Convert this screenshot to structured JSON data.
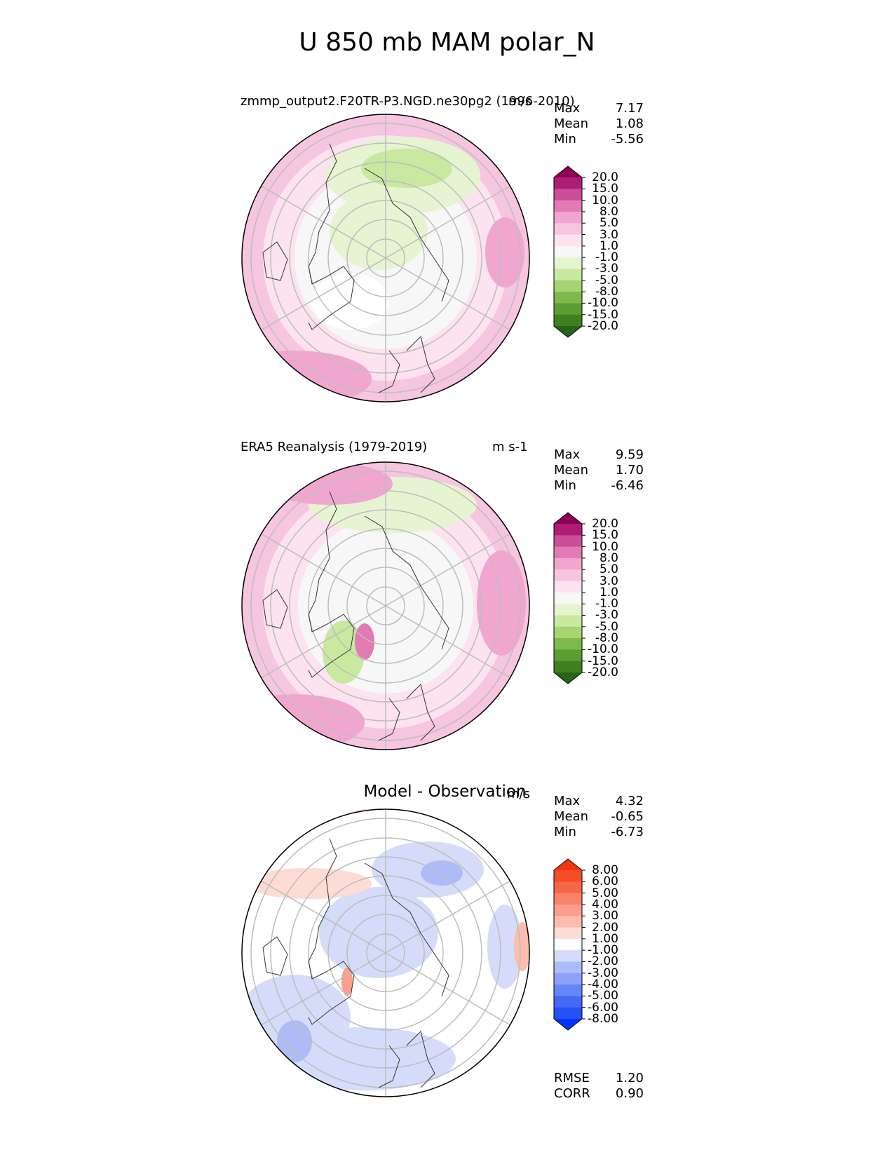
{
  "title": "U 850 mb MAM polar_N",
  "panels": [
    {
      "left_title": "zmmp_output2.F20TR-P3.NGD.ne30pg2 (1996-2010)",
      "units": "m/s",
      "stats": [
        [
          "Max",
          "7.17"
        ],
        [
          "Mean",
          "1.08"
        ],
        [
          "Min",
          "-5.56"
        ]
      ],
      "colorbar": {
        "colors": [
          "#276419",
          "#3f7f21",
          "#5a9e32",
          "#7eb94b",
          "#a7d372",
          "#c9e8a0",
          "#e6f4d2",
          "#f7f7f7",
          "#fce3ef",
          "#f6c5df",
          "#f0a6cf",
          "#e27bb4",
          "#cb4d97",
          "#ad1d76",
          "#8e0152"
        ],
        "labels": [
          "-20.0",
          "-15.0",
          "-10.0",
          "-8.0",
          "-5.0",
          "-3.0",
          "-1.0",
          "1.0",
          "3.0",
          "5.0",
          "8.0",
          "10.0",
          "15.0",
          "20.0"
        ]
      }
    },
    {
      "left_title": "ERA5 Reanalysis (1979-2019)",
      "units": "m s-1",
      "stats": [
        [
          "Max",
          "9.59"
        ],
        [
          "Mean",
          "1.70"
        ],
        [
          "Min",
          "-6.46"
        ]
      ],
      "colorbar": {
        "colors": [
          "#276419",
          "#3f7f21",
          "#5a9e32",
          "#7eb94b",
          "#a7d372",
          "#c9e8a0",
          "#e6f4d2",
          "#f7f7f7",
          "#fce3ef",
          "#f6c5df",
          "#f0a6cf",
          "#e27bb4",
          "#cb4d97",
          "#ad1d76",
          "#8e0152"
        ],
        "labels": [
          "-20.0",
          "-15.0",
          "-10.0",
          "-8.0",
          "-5.0",
          "-3.0",
          "-1.0",
          "1.0",
          "3.0",
          "5.0",
          "8.0",
          "10.0",
          "15.0",
          "20.0"
        ]
      }
    },
    {
      "center_title": "Model - Observation",
      "units": "m/s",
      "stats": [
        [
          "Max",
          "4.32"
        ],
        [
          "Mean",
          "-0.65"
        ],
        [
          "Min",
          "-6.73"
        ]
      ],
      "colorbar": {
        "colors": [
          "#0433ff",
          "#2452f8",
          "#4469f6",
          "#6685f6",
          "#8ba2f6",
          "#aebbf7",
          "#d4dcfa",
          "#ffffff",
          "#fddcd6",
          "#fcbcae",
          "#fb9e8b",
          "#f8826a",
          "#f6664a",
          "#f44d27",
          "#f43512"
        ],
        "labels": [
          "-8.00",
          "-6.00",
          "-5.00",
          "-4.00",
          "-3.00",
          "-2.00",
          "-1.00",
          "1.00",
          "2.00",
          "3.00",
          "4.00",
          "5.00",
          "6.00",
          "8.00"
        ]
      },
      "footer_stats": [
        [
          "RMSE",
          "1.20"
        ],
        [
          "CORR",
          "0.90"
        ]
      ]
    }
  ]
}
